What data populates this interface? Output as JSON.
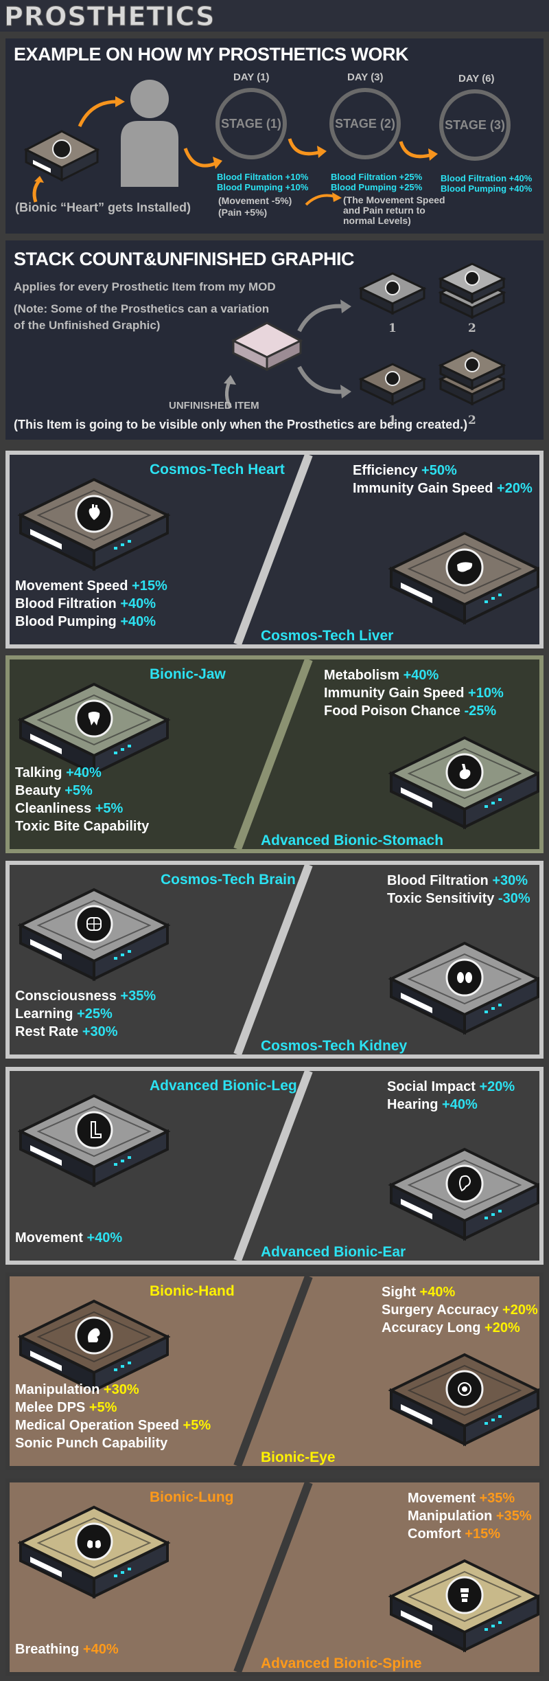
{
  "title": "PROSTHETICS",
  "example": {
    "heading": "EXAMPLE ON HOW MY PROSTHETICS WORK",
    "installed": "(Bionic “Heart” gets Installed)",
    "stages": [
      {
        "day": "DAY (1)",
        "label": "STAGE (1)",
        "lines": [
          "Blood Filtration +10%",
          "Blood Pumping +10%"
        ]
      },
      {
        "day": "DAY (3)",
        "label": "STAGE (2)",
        "lines": [
          "Blood Filtration +25%",
          "Blood Pumping +25%"
        ]
      },
      {
        "day": "DAY (6)",
        "label": "STAGE (3)",
        "lines": [
          "Blood Filtration +40%",
          "Blood Pumping +40%"
        ]
      }
    ],
    "stage1_extra": [
      "(Movement -5%)",
      "(Pain +5%)"
    ],
    "stage2_extra": [
      "(The Movement Speed",
      "and Pain return to",
      "normal Levels)"
    ]
  },
  "stack": {
    "heading": "STACK COUNT&UNFINISHED GRAPHIC",
    "applies": "Applies for every Prosthetic Item from my MOD",
    "note1": "(Note: Some of the Prosthetics can a variation",
    "note2": " of the Unfinished Graphic)",
    "unfinished": "UNFINISHED ITEM",
    "visible": "(This Item is going to be visible only when the Prosthetics are being created.)",
    "counts": [
      "1",
      "2",
      "1",
      "2"
    ]
  },
  "colors": {
    "cyan": "#2ce2f2",
    "yellow": "#fff200",
    "orange": "#ff9a1a"
  },
  "panels": [
    {
      "left_title": "Cosmos-Tech Heart",
      "left_icon": "heart-icon",
      "left_stats": [
        {
          "label": "Movement Speed ",
          "value": "+15%"
        },
        {
          "label": "Blood Filtration ",
          "value": "+40%"
        },
        {
          "label": "Blood Pumping ",
          "value": "+40%"
        }
      ],
      "right_title": "Cosmos-Tech Liver",
      "right_icon": "liver-icon",
      "right_stats": [
        {
          "label": "Efficiency ",
          "value": "+50%"
        },
        {
          "label": "Immunity Gain Speed ",
          "value": "+20%"
        }
      ]
    },
    {
      "left_title": "Bionic-Jaw",
      "left_icon": "tooth-icon",
      "left_stats": [
        {
          "label": "Talking ",
          "value": "+40%"
        },
        {
          "label": "Beauty ",
          "value": "+5%"
        },
        {
          "label": "Cleanliness ",
          "value": "+5%"
        },
        {
          "label": "Toxic Bite Capability",
          "value": ""
        }
      ],
      "right_title": "Advanced Bionic-Stomach",
      "right_icon": "stomach-icon",
      "right_stats": [
        {
          "label": "Metabolism ",
          "value": "+40%"
        },
        {
          "label": "Immunity Gain Speed ",
          "value": "+10%"
        },
        {
          "label": "Food Poison Chance ",
          "value": "-25%"
        }
      ]
    },
    {
      "left_title": "Cosmos-Tech Brain",
      "left_icon": "brain-icon",
      "left_stats": [
        {
          "label": "Consciousness ",
          "value": "+35%"
        },
        {
          "label": "Learning ",
          "value": "+25%"
        },
        {
          "label": "Rest Rate ",
          "value": "+30%"
        }
      ],
      "right_title": "Cosmos-Tech Kidney",
      "right_icon": "kidney-icon",
      "right_stats": [
        {
          "label": "Blood Filtration ",
          "value": "+30%"
        },
        {
          "label": "Toxic Sensitivity ",
          "value": "-30%"
        }
      ]
    },
    {
      "left_title": "Advanced Bionic-Leg",
      "left_icon": "leg-icon",
      "left_stats": [
        {
          "label": "Movement ",
          "value": "+40%"
        }
      ],
      "right_title": "Advanced Bionic-Ear",
      "right_icon": "ear-icon",
      "right_stats": [
        {
          "label": "Social Impact ",
          "value": "+20%"
        },
        {
          "label": "Hearing ",
          "value": "+40%"
        }
      ]
    },
    {
      "left_title": "Bionic-Hand",
      "left_icon": "arm-icon",
      "left_stats": [
        {
          "label": "Manipulation ",
          "value": "+30%"
        },
        {
          "label": "Melee DPS ",
          "value": "+5%"
        },
        {
          "label": "Medical Operation Speed ",
          "value": "+5%"
        },
        {
          "label": "Sonic Punch Capability",
          "value": ""
        }
      ],
      "right_title": "Bionic-Eye",
      "right_icon": "eye-icon",
      "right_stats": [
        {
          "label": "Sight ",
          "value": "+40%"
        },
        {
          "label": "Surgery Accuracy ",
          "value": "+20%"
        },
        {
          "label": "Accuracy Long ",
          "value": "+20%"
        }
      ]
    },
    {
      "left_title": "Bionic-Lung",
      "left_icon": "lung-icon",
      "left_stats": [
        {
          "label": "Breathing ",
          "value": "+40%"
        }
      ],
      "right_title": "Advanced Bionic-Spine",
      "right_icon": "spine-icon",
      "right_stats": [
        {
          "label": "Movement ",
          "value": "+35%"
        },
        {
          "label": "Manipulation ",
          "value": "+35%"
        },
        {
          "label": "Comfort ",
          "value": "+15%"
        }
      ]
    }
  ]
}
